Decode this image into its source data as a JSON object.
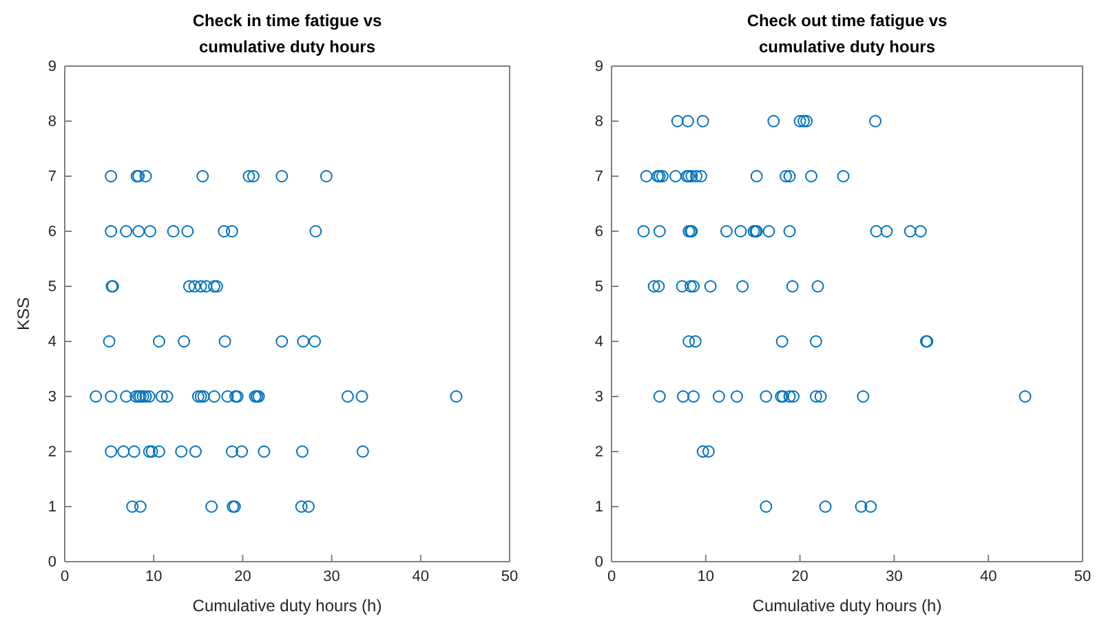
{
  "chart_data": [
    {
      "type": "scatter",
      "title": "Check in time fatigue vs\ncumulative duty hours",
      "xlabel": "Cumulative duty hours (h)",
      "ylabel": "KSS",
      "xlim": [
        0,
        50
      ],
      "ylim": [
        0,
        9
      ],
      "xticks": [
        0,
        10,
        20,
        30,
        40,
        50
      ],
      "yticks": [
        0,
        1,
        2,
        3,
        4,
        5,
        6,
        7,
        8,
        9
      ],
      "grid": false,
      "marker": "circle",
      "series": [
        {
          "color": "#0072bd",
          "x": [
            5.2,
            8.1,
            8.3,
            9.1,
            15.5,
            20.7,
            21.2,
            24.4,
            29.4,
            5.2,
            6.9,
            8.3,
            9.6,
            12.2,
            13.8,
            17.9,
            18.8,
            28.2,
            5.3,
            5.4,
            14.0,
            14.6,
            15.3,
            15.9,
            16.8,
            17.1,
            5.0,
            10.6,
            13.4,
            18.0,
            24.4,
            26.8,
            28.1,
            3.5,
            5.2,
            6.9,
            8.0,
            8.3,
            8.5,
            8.8,
            9.1,
            9.5,
            10.9,
            11.5,
            15.0,
            15.3,
            15.6,
            16.8,
            18.3,
            19.2,
            19.4,
            21.4,
            21.6,
            21.8,
            31.8,
            33.4,
            44.0,
            5.2,
            6.6,
            7.8,
            9.5,
            9.8,
            10.6,
            13.1,
            14.7,
            18.8,
            19.9,
            22.4,
            26.7,
            33.5,
            7.6,
            8.5,
            16.5,
            18.9,
            19.1,
            26.6,
            27.4
          ],
          "values": [
            7,
            7,
            7,
            7,
            7,
            7,
            7,
            7,
            7,
            6,
            6,
            6,
            6,
            6,
            6,
            6,
            6,
            6,
            5,
            5,
            5,
            5,
            5,
            5,
            5,
            5,
            4,
            4,
            4,
            4,
            4,
            4,
            4,
            3,
            3,
            3,
            3,
            3,
            3,
            3,
            3,
            3,
            3,
            3,
            3,
            3,
            3,
            3,
            3,
            3,
            3,
            3,
            3,
            3,
            3,
            3,
            3,
            2,
            2,
            2,
            2,
            2,
            2,
            2,
            2,
            2,
            2,
            2,
            2,
            2,
            1,
            1,
            1,
            1,
            1,
            1,
            1
          ]
        }
      ]
    },
    {
      "type": "scatter",
      "title": "Check out time fatigue vs\ncumulative duty hours",
      "xlabel": "Cumulative duty hours (h)",
      "xlim": [
        0,
        50
      ],
      "ylim": [
        0,
        9
      ],
      "xticks": [
        0,
        10,
        20,
        30,
        40,
        50
      ],
      "yticks": [
        0,
        1,
        2,
        3,
        4,
        5,
        6,
        7,
        8,
        9
      ],
      "grid": false,
      "marker": "circle",
      "series": [
        {
          "color": "#0072bd",
          "x": [
            7.0,
            8.1,
            9.7,
            17.2,
            20.0,
            20.4,
            20.7,
            28.0,
            3.7,
            4.9,
            5.1,
            5.4,
            6.8,
            8.0,
            8.2,
            8.5,
            9.0,
            9.5,
            15.4,
            18.5,
            18.9,
            21.2,
            24.6,
            3.4,
            5.1,
            8.2,
            8.4,
            8.5,
            12.2,
            13.7,
            15.1,
            15.3,
            15.4,
            16.7,
            18.9,
            28.1,
            29.2,
            31.7,
            32.8,
            4.5,
            5.0,
            7.5,
            8.4,
            8.7,
            10.5,
            13.9,
            19.2,
            21.9,
            8.2,
            8.9,
            18.1,
            21.7,
            33.4,
            33.5,
            5.1,
            7.6,
            8.7,
            11.4,
            13.3,
            16.4,
            18.0,
            18.2,
            18.9,
            19.3,
            21.7,
            22.2,
            26.7,
            43.9,
            9.7,
            10.3,
            16.4,
            22.7,
            26.5,
            27.5
          ],
          "values": [
            8,
            8,
            8,
            8,
            8,
            8,
            8,
            8,
            7,
            7,
            7,
            7,
            7,
            7,
            7,
            7,
            7,
            7,
            7,
            7,
            7,
            7,
            7,
            6,
            6,
            6,
            6,
            6,
            6,
            6,
            6,
            6,
            6,
            6,
            6,
            6,
            6,
            6,
            6,
            5,
            5,
            5,
            5,
            5,
            5,
            5,
            5,
            5,
            4,
            4,
            4,
            4,
            4,
            4,
            3,
            3,
            3,
            3,
            3,
            3,
            3,
            3,
            3,
            3,
            3,
            3,
            3,
            3,
            2,
            2,
            1,
            1,
            1,
            1
          ]
        }
      ]
    }
  ]
}
